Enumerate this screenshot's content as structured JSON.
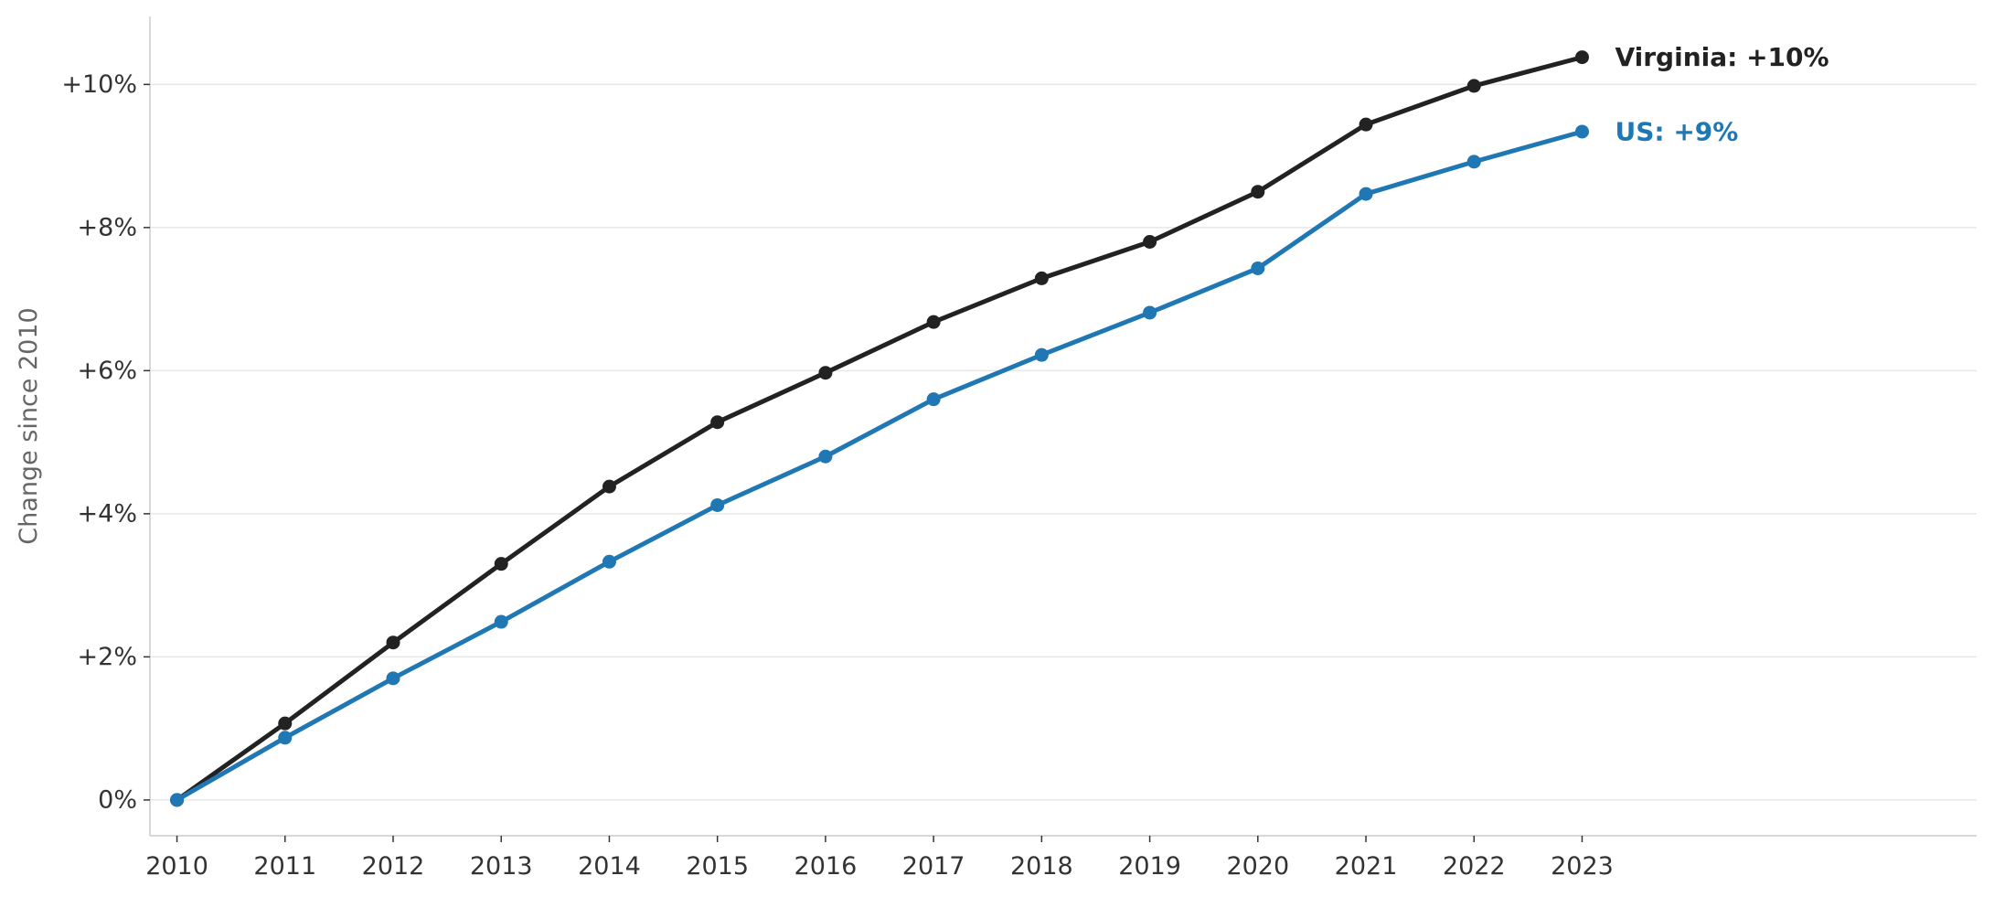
{
  "chart_data": {
    "type": "line",
    "title": "",
    "xlabel": "",
    "ylabel": "Change since 2010",
    "x": [
      2010,
      2011,
      2012,
      2013,
      2014,
      2015,
      2016,
      2017,
      2018,
      2019,
      2020,
      2021,
      2022,
      2023
    ],
    "x_tick_labels": [
      "2010",
      "2011",
      "2012",
      "2013",
      "2014",
      "2015",
      "2016",
      "2017",
      "2018",
      "2019",
      "2020",
      "2021",
      "2022",
      "2023"
    ],
    "xlim": [
      2009.75,
      2026.65
    ],
    "ylim": [
      -0.5,
      10.95
    ],
    "y_ticks": [
      0,
      2,
      4,
      6,
      8,
      10
    ],
    "y_tick_labels": [
      "0%",
      "+2%",
      "+4%",
      "+6%",
      "+8%",
      "+10%"
    ],
    "grid": "horizontal",
    "legend": "none (series labeled at line ends)",
    "series": [
      {
        "key": "virginia",
        "color": "#222222",
        "end_label": "Virginia: +10%",
        "values": [
          0.0,
          1.07,
          2.2,
          3.3,
          4.38,
          5.28,
          5.97,
          6.68,
          7.29,
          7.8,
          8.5,
          9.44,
          9.98,
          10.38
        ]
      },
      {
        "key": "us",
        "color": "#1f77b4",
        "end_label": "US: +9%",
        "values": [
          0.0,
          0.87,
          1.7,
          2.49,
          3.33,
          4.12,
          4.8,
          5.6,
          6.22,
          6.81,
          7.43,
          8.47,
          8.92,
          9.34
        ]
      }
    ],
    "colors": {
      "grid": "#e8e8e8",
      "axis": "#cccccc",
      "tick_text": "#333333",
      "ylabel_text": "#666666"
    }
  }
}
